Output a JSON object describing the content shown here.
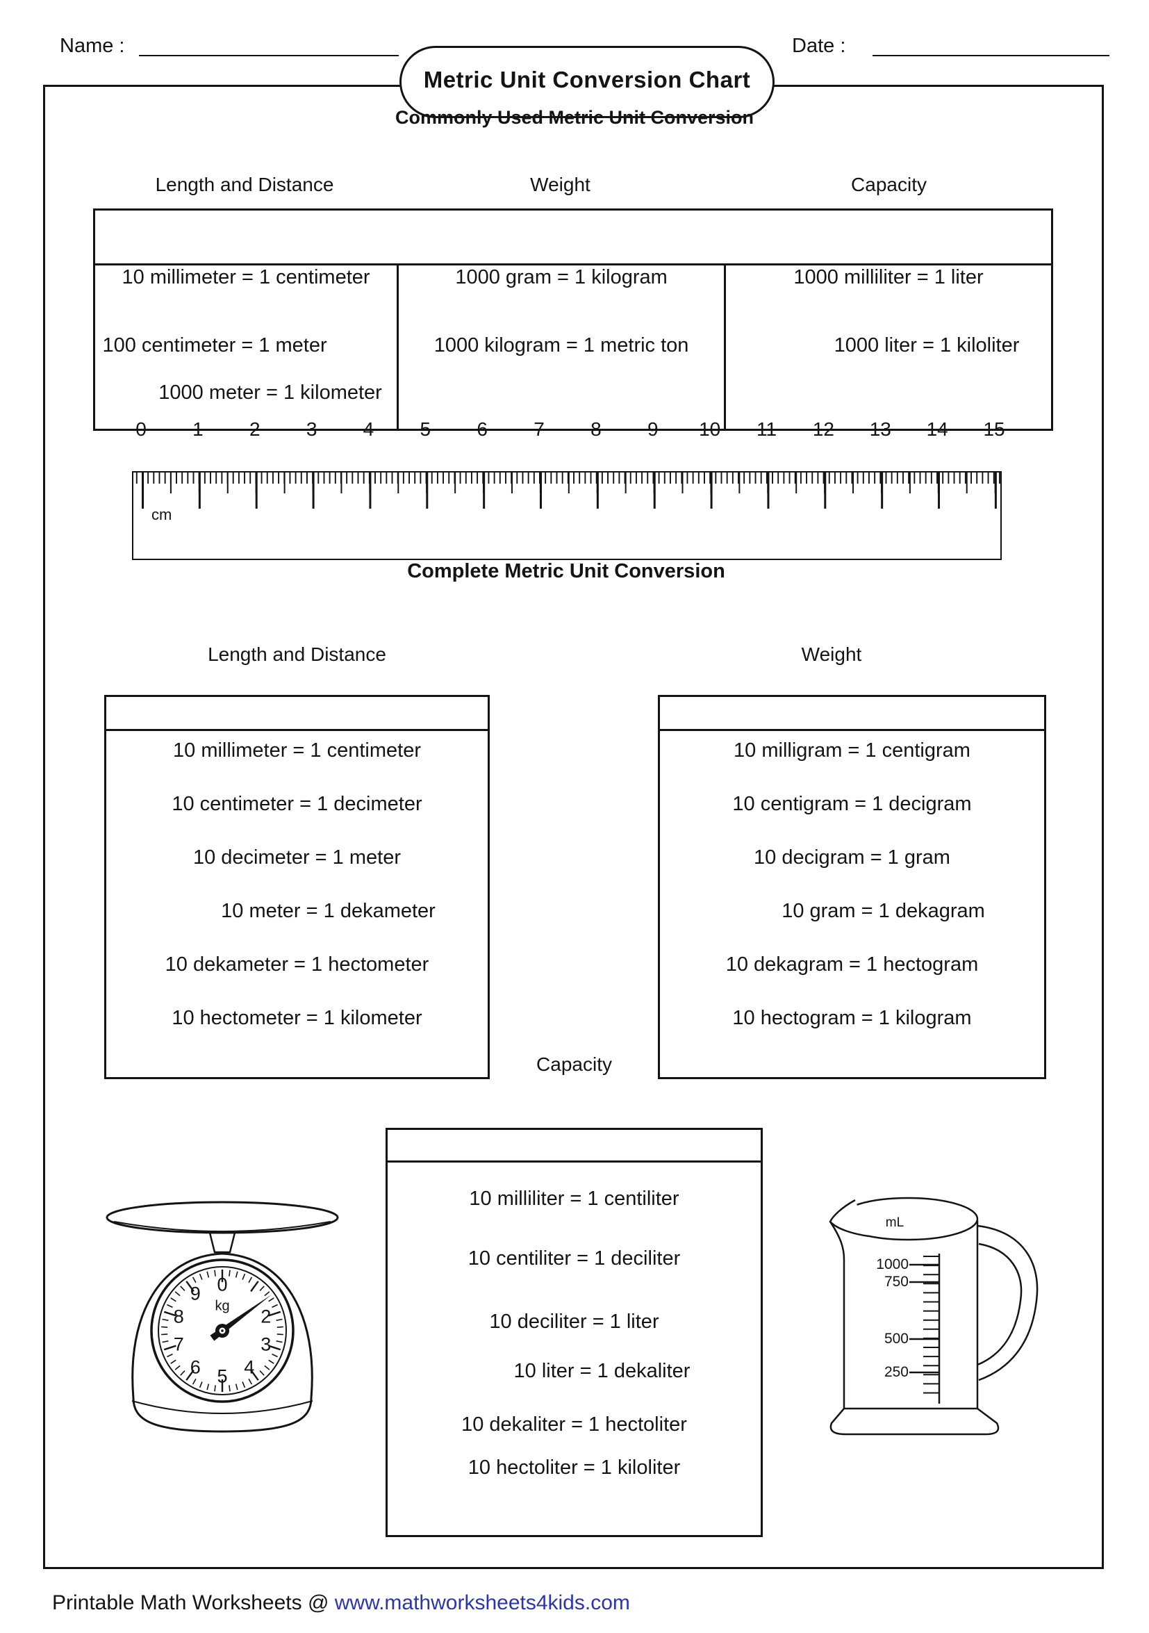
{
  "page": {
    "name_label": "Name :",
    "date_label": "Date :",
    "title": "Metric Unit Conversion Chart",
    "subtitle": "Commonly Used Metric Unit Conversion",
    "footer_prefix": "Printable Math Worksheets @ ",
    "footer_link": "www.mathworksheets4kids.com"
  },
  "colors": {
    "link": "#2b35b0",
    "ink": "#141414"
  },
  "common_table": {
    "columns": [
      {
        "header": "Length and Distance",
        "rows": [
          "10 millimeter = 1 centimeter",
          "100 centimeter = 1 meter",
          "1000 meter = 1 kilometer"
        ]
      },
      {
        "header": "Weight",
        "rows": [
          "1000 gram = 1 kilogram",
          "1000 kilogram = 1 metric ton"
        ]
      },
      {
        "header": "Capacity",
        "rows": [
          "1000 milliliter = 1 liter",
          "1000 liter = 1 kiloliter"
        ]
      }
    ]
  },
  "ruler": {
    "unit": "cm",
    "numbers": [
      "0",
      "1",
      "2",
      "3",
      "4",
      "5",
      "6",
      "7",
      "8",
      "9",
      "10",
      "11",
      "12",
      "13",
      "14",
      "15"
    ]
  },
  "complete_section": {
    "heading": "Complete Metric Unit Conversion",
    "length": {
      "label": "Length and Distance",
      "rows": [
        "10 millimeter = 1 centimeter",
        "10 centimeter = 1 decimeter",
        "10 decimeter = 1 meter",
        "10 meter = 1 dekameter",
        "10 dekameter = 1 hectometer",
        "10 hectometer = 1 kilometer"
      ]
    },
    "weight": {
      "label": "Weight",
      "rows": [
        "10 milligram = 1 centigram",
        "10 centigram = 1 decigram",
        "10 decigram = 1 gram",
        "10 gram = 1 dekagram",
        "10 dekagram = 1 hectogram",
        "10 hectogram = 1 kilogram"
      ]
    },
    "capacity": {
      "label": "Capacity",
      "rows": [
        "10 milliliter = 1 centiliter",
        "10 centiliter = 1 deciliter",
        "10 deciliter = 1 liter",
        "10 liter = 1 dekaliter",
        "10 dekaliter = 1 hectoliter",
        "10 hectoliter = 1 kiloliter"
      ]
    }
  },
  "scale_illustration": {
    "unit_label": "kg",
    "dial_numbers": [
      {
        "label": "0",
        "angle": 0
      },
      {
        "label": "2",
        "angle": 72
      },
      {
        "label": "3",
        "angle": 108
      },
      {
        "label": "4",
        "angle": 144
      },
      {
        "label": "5",
        "angle": 180
      },
      {
        "label": "6",
        "angle": 216
      },
      {
        "label": "7",
        "angle": 252
      },
      {
        "label": "8",
        "angle": 288
      },
      {
        "label": "9",
        "angle": 324
      }
    ]
  },
  "jug_illustration": {
    "unit_label": "mL",
    "scale_labels": [
      "1000",
      "750",
      "500",
      "250"
    ]
  }
}
